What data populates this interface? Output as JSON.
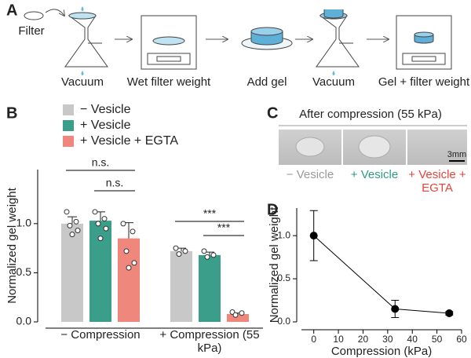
{
  "panel_a": {
    "label": "A",
    "filter": "Filter",
    "steps": [
      "Vacuum",
      "Wet filter weight",
      "Add gel",
      "Vacuum",
      "Gel + filter weight"
    ]
  },
  "panel_c": {
    "label": "C",
    "title": "After compression (55 kPa)",
    "scale_bar": "3mm",
    "conditions": [
      {
        "text": "− Vesicle",
        "color": "#9a9a9a"
      },
      {
        "text": "+ Vesicle",
        "color": "#2e9a86"
      },
      {
        "text": "+ Vesicle + EGTA",
        "color": "#e8423a"
      }
    ]
  },
  "chart_data": [
    {
      "type": "bar",
      "panel_label": "B",
      "ylabel": "Normalized gel weight",
      "categories": [
        "− Compression",
        "+ Compression (55 kPa)"
      ],
      "series": [
        {
          "name": "− Vesicle",
          "color": "#c8c8c8",
          "label_color": "#9a9a9a",
          "values": [
            1.0,
            0.72
          ],
          "errors": [
            0.07,
            0.03
          ],
          "points": [
            [
              1.12,
              1.02,
              0.98,
              0.93,
              0.89
            ],
            [
              0.75,
              0.72,
              0.69
            ]
          ]
        },
        {
          "name": "+ Vesicle",
          "color": "#3a9e8a",
          "label_color": "#2e9a86",
          "values": [
            1.03,
            0.68
          ],
          "errors": [
            0.09,
            0.03
          ],
          "points": [
            [
              1.12,
              1.05,
              1.0,
              0.95,
              0.85
            ],
            [
              0.72,
              0.68,
              0.66
            ]
          ]
        },
        {
          "name": "+ Vesicle + EGTA",
          "color": "#f0877c",
          "label_color": "#e8423a",
          "values": [
            0.85,
            0.08
          ],
          "errors": [
            0.16,
            0.01
          ],
          "points": [
            [
              1.0,
              0.92,
              0.72,
              0.6,
              0.55
            ],
            [
              0.1,
              0.09,
              0.07
            ]
          ]
        }
      ],
      "ylim": [
        0,
        1.55
      ],
      "yticks": [
        {
          "value": 0,
          "label": "0.0"
        },
        {
          "value": 0.5,
          "label": "0.5"
        },
        {
          "value": 1,
          "label": "1.0"
        }
      ],
      "significance": [
        "n.s.",
        "n.s.",
        "***",
        "***"
      ]
    },
    {
      "type": "line",
      "panel_label": "D",
      "xlabel": "Compression (kPa)",
      "ylabel": "Normalized gel weight",
      "x": [
        0,
        33,
        55
      ],
      "values": [
        1.0,
        0.15,
        0.1
      ],
      "errors": [
        0.29,
        0.1,
        0.02
      ],
      "color": "#000000",
      "xlim": [
        -5,
        60
      ],
      "xticks": [
        0,
        10,
        20,
        30,
        40,
        50,
        60
      ],
      "ylim": [
        0,
        1.32
      ],
      "yticks": [
        {
          "value": 0,
          "label": "0.0"
        },
        {
          "value": 0.5,
          "label": "0.5"
        },
        {
          "value": 1,
          "label": "1.0"
        }
      ]
    }
  ]
}
